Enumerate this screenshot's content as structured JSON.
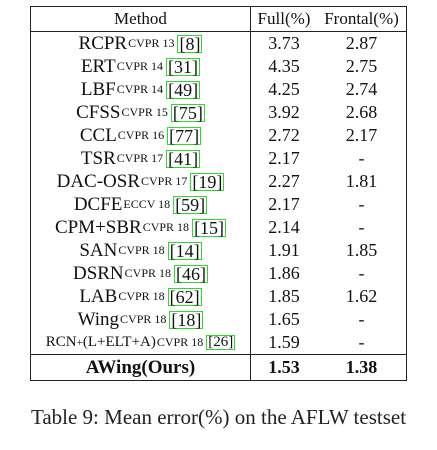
{
  "table": {
    "headers": {
      "method": "Method",
      "full": "Full(%)",
      "frontal": "Frontal(%)"
    },
    "rows": [
      {
        "name": "RCPR",
        "venue": "CVPR 13",
        "cite": "[8]",
        "full": "3.73",
        "frontal": "2.87"
      },
      {
        "name": "ERT",
        "venue": "CVPR 14",
        "cite": "[31]",
        "full": "4.35",
        "frontal": "2.75"
      },
      {
        "name": "LBF",
        "venue": "CVPR 14",
        "cite": "[49]",
        "full": "4.25",
        "frontal": "2.74"
      },
      {
        "name": "CFSS",
        "venue": "CVPR 15",
        "cite": "[75]",
        "full": "3.92",
        "frontal": "2.68"
      },
      {
        "name": "CCL",
        "venue": "CVPR 16",
        "cite": "[77]",
        "full": "2.72",
        "frontal": "2.17"
      },
      {
        "name": "TSR",
        "venue": "CVPR 17",
        "cite": "[41]",
        "full": "2.17",
        "frontal": "-"
      },
      {
        "name": "DAC-OSR",
        "venue": "CVPR 17",
        "cite": "[19]",
        "full": "2.27",
        "frontal": "1.81"
      },
      {
        "name": "DCFE",
        "venue": "ECCV 18",
        "cite": "[59]",
        "full": "2.17",
        "frontal": "-"
      },
      {
        "name": "CPM+SBR",
        "venue": "CVPR 18",
        "cite": "[15]",
        "full": "2.14",
        "frontal": "-"
      },
      {
        "name": "SAN",
        "venue": "CVPR 18",
        "cite": "[14]",
        "full": "1.91",
        "frontal": "1.85"
      },
      {
        "name": "DSRN",
        "venue": "CVPR 18",
        "cite": "[46]",
        "full": "1.86",
        "frontal": "-"
      },
      {
        "name": "LAB",
        "venue": "CVPR 18",
        "cite": "[62]",
        "full": "1.85",
        "frontal": "1.62"
      },
      {
        "name": "Wing",
        "venue": "CVPR 18",
        "cite": "[18]",
        "full": "1.65",
        "frontal": "-"
      },
      {
        "name": "RCN",
        "sup": "+",
        "name_rest": "(L+ELT+A)",
        "venue": "CVPR 18",
        "cite": "[26]",
        "full": "1.59",
        "frontal": "-"
      }
    ],
    "final": {
      "name": "AWing(Ours)",
      "full": "1.53",
      "frontal": "1.38"
    }
  },
  "caption": "Table 9: Mean error(%) on the AFLW testset"
}
